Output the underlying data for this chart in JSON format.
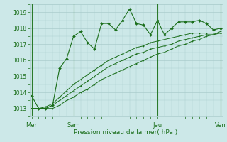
{
  "background_color": "#cce8e8",
  "grid_color": "#aacccc",
  "line_color": "#1a6e1a",
  "marker_color": "#1a6e1a",
  "xlabel": "Pression niveau de la mer( hPa )",
  "ylim": [
    1012.5,
    1019.5
  ],
  "xlim": [
    -0.3,
    27.3
  ],
  "yticks": [
    1013,
    1014,
    1015,
    1016,
    1017,
    1018,
    1019
  ],
  "day_labels": [
    "Mer",
    "Sam",
    "Jeu",
    "Ven"
  ],
  "day_positions": [
    0,
    6,
    18,
    27
  ],
  "series1": [
    1013.8,
    1013.0,
    1013.0,
    1013.2,
    1015.5,
    1016.1,
    1017.5,
    1017.8,
    1017.1,
    1016.7,
    1018.3,
    1018.3,
    1017.9,
    1018.5,
    1019.2,
    1018.3,
    1018.2,
    1017.6,
    1018.5,
    1017.6,
    1018.0,
    1018.4,
    1018.4,
    1018.4,
    1018.5,
    1018.3,
    1017.9,
    1018.0
  ],
  "series2": [
    1013.0,
    1013.0,
    1013.1,
    1013.3,
    1013.7,
    1014.1,
    1014.5,
    1014.8,
    1015.1,
    1015.4,
    1015.7,
    1016.0,
    1016.2,
    1016.4,
    1016.6,
    1016.8,
    1016.9,
    1017.1,
    1017.2,
    1017.3,
    1017.4,
    1017.5,
    1017.6,
    1017.7,
    1017.7,
    1017.7,
    1017.7,
    1017.7
  ],
  "series3": [
    1013.0,
    1013.0,
    1013.0,
    1013.2,
    1013.5,
    1013.8,
    1014.1,
    1014.4,
    1014.7,
    1015.0,
    1015.3,
    1015.6,
    1015.8,
    1016.0,
    1016.2,
    1016.4,
    1016.5,
    1016.7,
    1016.8,
    1016.9,
    1017.0,
    1017.2,
    1017.3,
    1017.4,
    1017.5,
    1017.6,
    1017.6,
    1017.7
  ],
  "series4": [
    1013.0,
    1013.0,
    1013.0,
    1013.0,
    1013.2,
    1013.5,
    1013.7,
    1014.0,
    1014.2,
    1014.5,
    1014.8,
    1015.0,
    1015.2,
    1015.4,
    1015.6,
    1015.8,
    1016.0,
    1016.2,
    1016.4,
    1016.5,
    1016.7,
    1016.9,
    1017.0,
    1017.2,
    1017.3,
    1017.5,
    1017.6,
    1017.8
  ]
}
